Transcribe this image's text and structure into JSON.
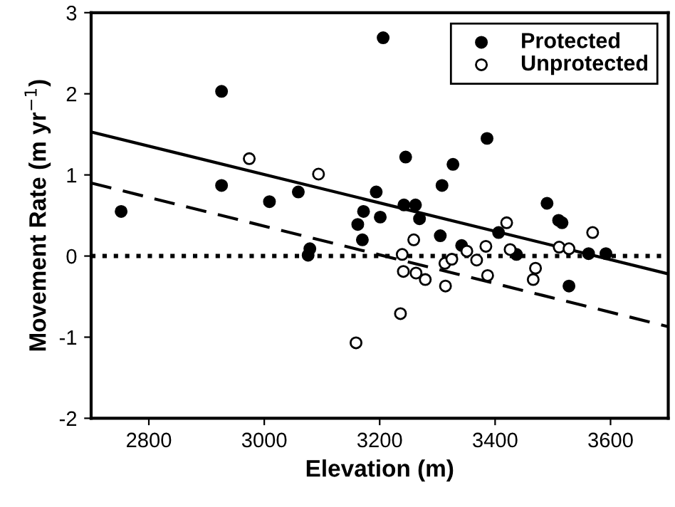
{
  "chart_data": {
    "type": "scatter",
    "xlabel": "Elevation (m)",
    "ylabel": "Movement Rate (m yr$^{−1}$)",
    "xlim": [
      2700,
      3700
    ],
    "xticks": [
      2800,
      3000,
      3200,
      3400,
      3600
    ],
    "ylim": [
      -2,
      3
    ],
    "yticks": [
      -2,
      -1,
      0,
      1,
      2,
      3
    ],
    "grid": false,
    "legend": "top right",
    "series": [
      {
        "name": "Protected",
        "color": "#000000",
        "marker": "circle",
        "x": [
          2752,
          2926,
          2926,
          3009,
          3059,
          3079,
          3076,
          3194,
          3172,
          3162,
          3170,
          3201,
          3206,
          3245,
          3242,
          3262,
          3269,
          3308,
          3327,
          3305,
          3342,
          3386,
          3406,
          3437,
          3490,
          3510,
          3516,
          3528,
          3562,
          3592
        ],
        "values": [
          0.55,
          2.03,
          0.87,
          0.67,
          0.79,
          0.09,
          0.01,
          0.79,
          0.55,
          0.39,
          0.2,
          0.48,
          2.69,
          1.22,
          0.63,
          0.63,
          0.46,
          0.87,
          1.13,
          0.25,
          0.13,
          1.45,
          0.29,
          0.02,
          0.65,
          0.44,
          0.41,
          -0.37,
          0.03,
          0.03
        ]
      },
      {
        "name": "Unprotected",
        "color": "#ffffff",
        "marker": "circle",
        "x": [
          2974,
          3094,
          3159,
          3236,
          3239,
          3241,
          3259,
          3263,
          3279,
          3314,
          3313,
          3325,
          3351,
          3368,
          3384,
          3387,
          3420,
          3426,
          3466,
          3470,
          3511,
          3528,
          3569
        ],
        "values": [
          1.2,
          1.01,
          -1.07,
          -0.71,
          0.02,
          -0.19,
          0.2,
          -0.21,
          -0.29,
          -0.37,
          -0.09,
          -0.04,
          0.06,
          -0.05,
          0.12,
          -0.24,
          0.41,
          0.08,
          -0.29,
          -0.15,
          0.11,
          0.09,
          0.29
        ]
      },
      {
        "type": "line",
        "color": "#000000",
        "line_style": "solid",
        "marker": "none",
        "x": [
          2700,
          3700
        ],
        "values": [
          1.53,
          -0.22
        ]
      },
      {
        "type": "line",
        "color": "#000000",
        "line_style": "dashed",
        "marker": "none",
        "x": [
          2700,
          3700
        ],
        "values": [
          0.9,
          -0.87
        ]
      }
    ],
    "ref_lines": [
      {
        "axis": "y",
        "value": 0,
        "color": "#000000",
        "line_style": "dotted"
      }
    ]
  }
}
